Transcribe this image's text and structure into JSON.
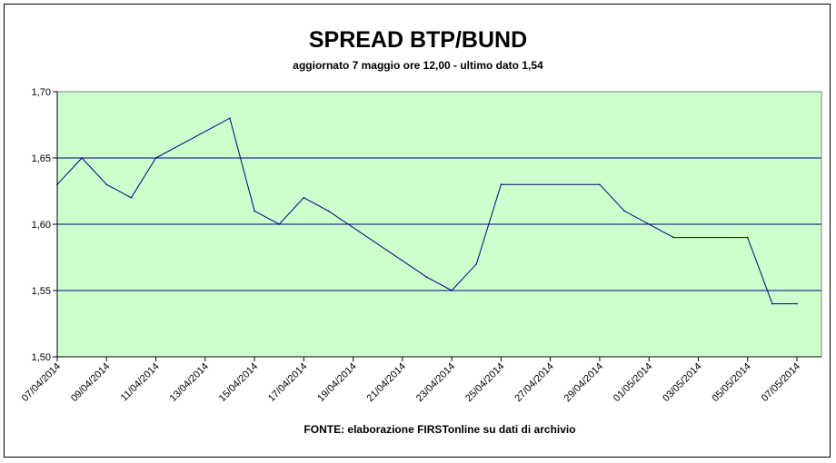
{
  "chart_data": {
    "type": "line",
    "title": "SPREAD BTP/BUND",
    "subtitle": "aggiornato 7 maggio ore 12,00 - ultimo dato 1,54",
    "source": "FONTE: elaborazione FIRSTonline su dati di archivio",
    "xlabel": "",
    "ylabel": "",
    "ylim": [
      1.5,
      1.7
    ],
    "yticks": [
      "1,50",
      "1,55",
      "1,60",
      "1,65",
      "1,70"
    ],
    "grid": true,
    "legend": "none",
    "colors": {
      "plot_background": "#ccffcc",
      "line": "#000080",
      "gridline": "#000080"
    },
    "x_tick_labels": [
      "07/04/2014",
      "09/04/2014",
      "11/04/2014",
      "13/04/2014",
      "15/04/2014",
      "17/04/2014",
      "19/04/2014",
      "21/04/2014",
      "23/04/2014",
      "25/04/2014",
      "27/04/2014",
      "29/04/2014",
      "01/05/2014",
      "03/05/2014",
      "05/05/2014",
      "07/05/2014"
    ],
    "series": [
      {
        "x": [
          "07/04/2014",
          "08/04/2014",
          "09/04/2014",
          "10/04/2014",
          "11/04/2014",
          "14/04/2014",
          "15/04/2014",
          "16/04/2014",
          "17/04/2014",
          "18/04/2014",
          "22/04/2014",
          "23/04/2014",
          "24/04/2014",
          "25/04/2014",
          "29/04/2014",
          "30/04/2014",
          "02/05/2014",
          "05/05/2014",
          "06/05/2014",
          "07/05/2014"
        ],
        "values": [
          1.63,
          1.65,
          1.63,
          1.62,
          1.65,
          1.68,
          1.61,
          1.6,
          1.62,
          1.61,
          1.56,
          1.55,
          1.57,
          1.63,
          1.63,
          1.61,
          1.59,
          1.59,
          1.54,
          1.54
        ]
      }
    ]
  }
}
